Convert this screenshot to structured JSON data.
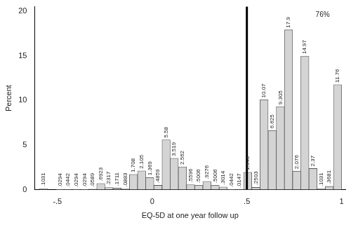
{
  "chart_data": {
    "type": "histogram",
    "x_label": "EQ-5D at one year follow up",
    "y_label": "Percent",
    "bins": [
      -0.594,
      -0.5509,
      -0.5078,
      -0.4648,
      -0.4217,
      -0.3786,
      -0.3355,
      -0.2924,
      -0.2494,
      -0.2063,
      -0.1632,
      -0.1201,
      -0.077,
      -0.034,
      0.0091,
      0.0522,
      0.0953,
      0.1384,
      0.1814,
      0.2245,
      0.2676,
      0.3107,
      0.3538,
      0.3968,
      0.4399,
      0.483,
      0.5261,
      0.5692,
      0.6122,
      0.6553,
      0.6984,
      0.7415,
      0.7846,
      0.8276,
      0.8707,
      0.9138,
      0.9569,
      1.0
    ],
    "values": [
      0.1031,
      null,
      0.0294,
      0.0442,
      0.0294,
      0.0294,
      0.0589,
      0.6923,
      0.2317,
      0.1711,
      0.0883,
      1.708,
      2.105,
      1.369,
      0.4859,
      5.58,
      3.519,
      2.562,
      0.5596,
      0.5006,
      0.9276,
      0.5006,
      0.3014,
      0.0442,
      0.0147,
      1.943,
      0.2503,
      10.07,
      6.625,
      9.305,
      17.9,
      2.076,
      14.97,
      2.37,
      0.1031,
      0.3681,
      11.76
    ],
    "value_labels": [
      ".1031",
      null,
      ".0294",
      ".0442",
      ".0294",
      ".0294",
      ".0589",
      ".6923",
      ".2317",
      ".1711",
      ".0883",
      "1.708",
      "2.105",
      "1.369",
      ".4859",
      "5.58",
      "3.519",
      "2.562",
      ".5596",
      ".5006",
      ".9276",
      ".5006",
      ".3014",
      ".0442",
      ".0147",
      "1.943",
      ".2503",
      "10.07",
      "6.625",
      "9.305",
      "17.9",
      "2.076",
      "14.97",
      "2.37",
      ".1031",
      ".3681",
      "11.76"
    ],
    "color": "#d4d4d4",
    "data_labels": true,
    "xlim": [
      -0.62,
      1.02
    ],
    "xticks": [
      {
        "value": -0.5,
        "label": "-.5"
      },
      0,
      {
        "value": 0.5,
        "label": ".5"
      },
      1
    ],
    "ylim": [
      0,
      20.5
    ],
    "yticks": [
      0,
      5,
      10,
      15,
      20
    ],
    "grid": false,
    "reference_lines": [
      {
        "x": 0.5
      }
    ],
    "annotations": [
      {
        "text": "76%",
        "x": 0.9,
        "y": 19.6
      }
    ]
  }
}
